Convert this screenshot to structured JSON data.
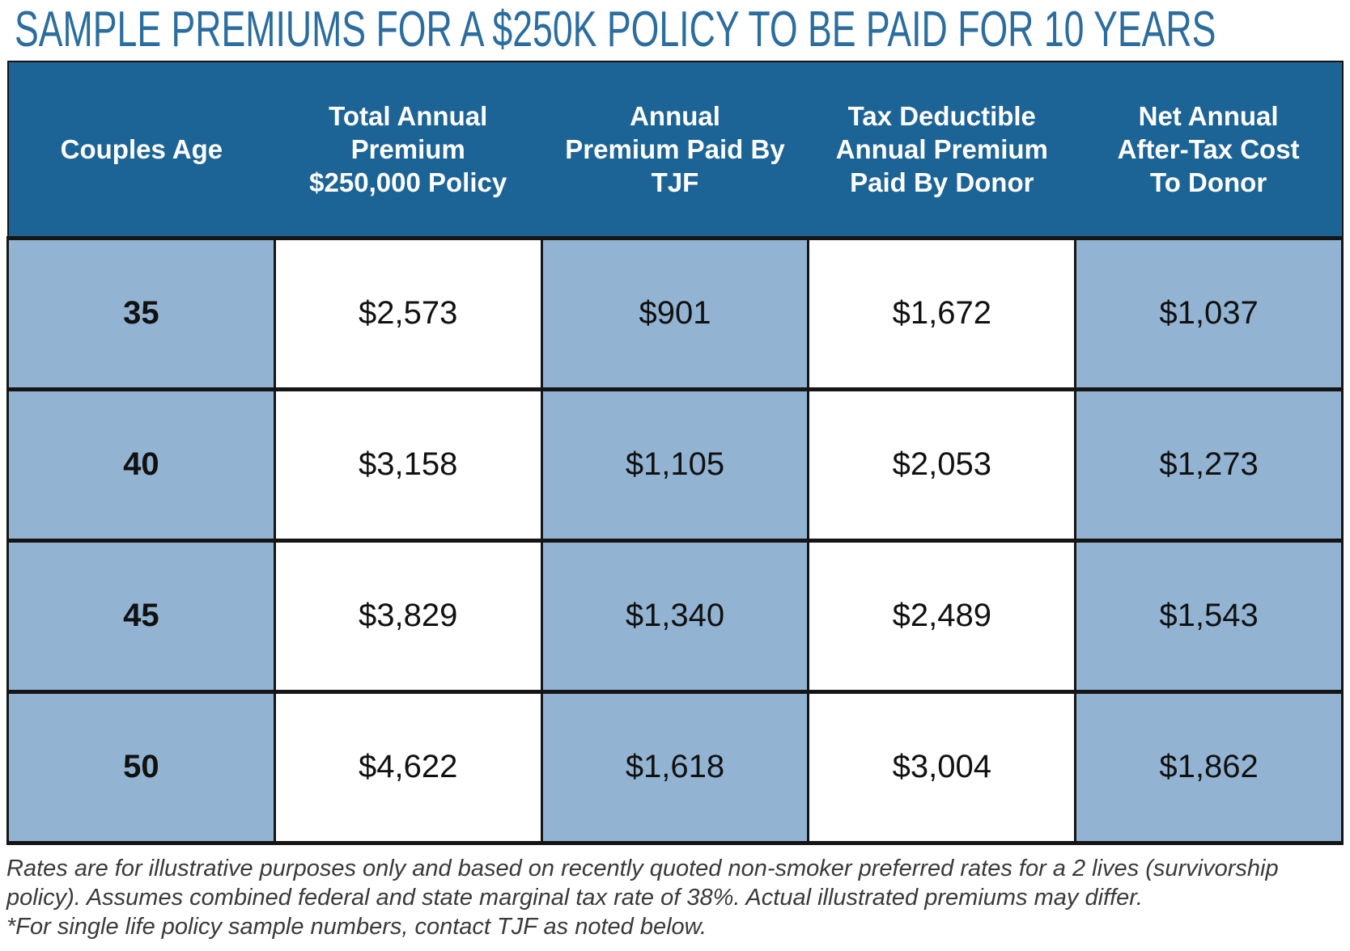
{
  "title": "SAMPLE PREMIUMS FOR A $250K POLICY TO BE PAID FOR 10 YEARS",
  "colors": {
    "title_color": "#2b6d9e",
    "header_bg": "#1d6496",
    "cell_blue": "#92b4d2",
    "border_color": "#151515",
    "footnote_color": "#3a3a3a"
  },
  "table": {
    "headers": [
      {
        "lines": [
          "Couples Age"
        ]
      },
      {
        "lines": [
          "Total Annual",
          "Premium",
          "$250,000 Policy"
        ]
      },
      {
        "lines": [
          "Annual",
          "Premium Paid By",
          "TJF"
        ]
      },
      {
        "lines": [
          "Tax Deductible",
          "Annual Premium",
          "Paid By Donor"
        ]
      },
      {
        "lines": [
          "Net Annual",
          "After-Tax Cost",
          "To Donor"
        ]
      }
    ],
    "rows": [
      {
        "age": "35",
        "total_annual_premium": "$2,573",
        "premium_paid_by_tjf": "$901",
        "tax_deductible_premium": "$1,672",
        "net_after_tax_cost": "$1,037"
      },
      {
        "age": "40",
        "total_annual_premium": "$3,158",
        "premium_paid_by_tjf": "$1,105",
        "tax_deductible_premium": "$2,053",
        "net_after_tax_cost": "$1,273"
      },
      {
        "age": "45",
        "total_annual_premium": "$3,829",
        "premium_paid_by_tjf": "$1,340",
        "tax_deductible_premium": "$2,489",
        "net_after_tax_cost": "$1,543"
      },
      {
        "age": "50",
        "total_annual_premium": "$4,622",
        "premium_paid_by_tjf": "$1,618",
        "tax_deductible_premium": "$3,004",
        "net_after_tax_cost": "$1,862"
      }
    ]
  },
  "footnotes": {
    "disclaimer": "Rates are for illustrative purposes only and based on recently quoted non-smoker preferred rates for a 2 lives (survivorship policy). Assumes combined federal and state marginal tax rate of 38%. Actual illustrated premiums may differ.",
    "single_life_note": "*For single life policy sample numbers, contact TJF as noted below."
  }
}
